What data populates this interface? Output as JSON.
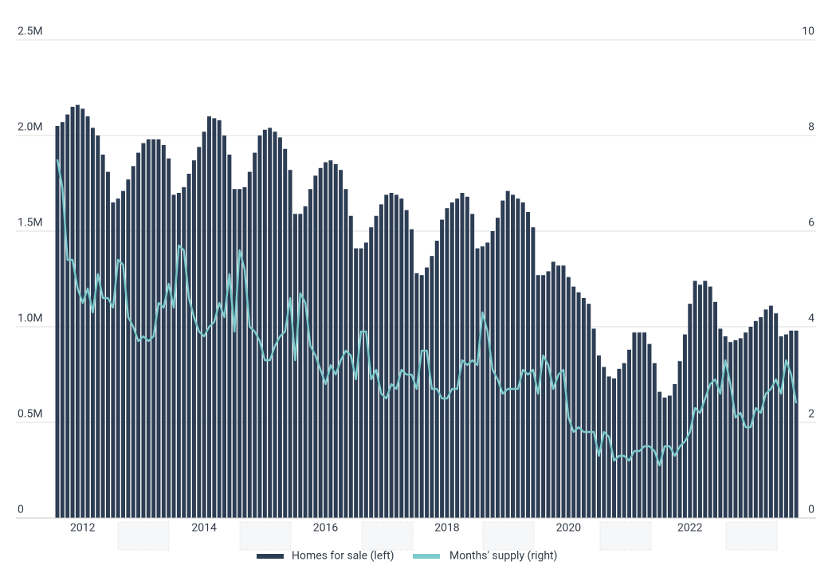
{
  "chart_data": {
    "type": "bar",
    "categories": [
      null,
      null,
      null,
      null,
      null,
      "2012",
      null,
      null,
      null,
      null,
      null,
      null,
      null,
      null,
      null,
      null,
      null,
      null,
      null,
      null,
      null,
      null,
      null,
      null,
      null,
      null,
      null,
      null,
      null,
      "2014",
      null,
      null,
      null,
      null,
      null,
      null,
      null,
      null,
      null,
      null,
      null,
      null,
      null,
      null,
      null,
      null,
      null,
      null,
      null,
      null,
      null,
      null,
      null,
      "2016",
      null,
      null,
      null,
      null,
      null,
      null,
      null,
      null,
      null,
      null,
      null,
      null,
      null,
      null,
      null,
      null,
      null,
      null,
      null,
      null,
      null,
      null,
      null,
      "2018",
      null,
      null,
      null,
      null,
      null,
      null,
      null,
      null,
      null,
      null,
      null,
      null,
      null,
      null,
      null,
      null,
      null,
      null,
      null,
      null,
      null,
      null,
      null,
      "2020",
      null,
      null,
      null,
      null,
      null,
      null,
      null,
      null,
      null,
      null,
      null,
      null,
      null,
      null,
      null,
      null,
      null,
      null,
      null,
      null,
      null,
      null,
      null,
      "2022",
      null,
      null,
      null,
      null,
      null,
      null,
      null,
      null,
      null,
      null,
      null,
      null,
      null,
      null,
      null,
      null,
      null,
      null,
      null,
      null,
      null
    ],
    "series": [
      {
        "name": "Homes for sale (left)",
        "type": "bar",
        "color": "#2c3d54",
        "values": [
          2050000,
          2070000,
          2110000,
          2150000,
          2160000,
          2140000,
          2100000,
          2040000,
          2000000,
          1900000,
          1810000,
          1650000,
          1670000,
          1710000,
          1770000,
          1840000,
          1910000,
          1960000,
          1980000,
          1980000,
          1980000,
          1950000,
          1880000,
          1690000,
          1700000,
          1730000,
          1800000,
          1870000,
          1940000,
          2020000,
          2100000,
          2090000,
          2080000,
          2000000,
          1900000,
          1720000,
          1720000,
          1730000,
          1810000,
          1910000,
          2000000,
          2030000,
          2040000,
          2020000,
          1990000,
          1930000,
          1820000,
          1590000,
          1590000,
          1630000,
          1720000,
          1790000,
          1830000,
          1860000,
          1870000,
          1850000,
          1820000,
          1720000,
          1580000,
          1410000,
          1410000,
          1440000,
          1520000,
          1580000,
          1640000,
          1690000,
          1700000,
          1690000,
          1670000,
          1610000,
          1510000,
          1280000,
          1270000,
          1310000,
          1370000,
          1450000,
          1560000,
          1620000,
          1650000,
          1670000,
          1700000,
          1680000,
          1590000,
          1410000,
          1420000,
          1440000,
          1500000,
          1570000,
          1660000,
          1710000,
          1690000,
          1670000,
          1650000,
          1600000,
          1520000,
          1270000,
          1270000,
          1290000,
          1340000,
          1320000,
          1320000,
          1260000,
          1210000,
          1180000,
          1150000,
          1120000,
          990000,
          850000,
          790000,
          740000,
          730000,
          780000,
          810000,
          880000,
          970000,
          970000,
          970000,
          910000,
          810000,
          660000,
          630000,
          640000,
          700000,
          820000,
          960000,
          1120000,
          1240000,
          1220000,
          1240000,
          1210000,
          1130000,
          990000,
          950000,
          920000,
          930000,
          940000,
          970000,
          1000000,
          1030000,
          1050000,
          1090000,
          1110000,
          1070000,
          950000,
          960000,
          980000,
          980000
        ]
      },
      {
        "name": "Months' supply (right)",
        "type": "line",
        "axis": "y2",
        "color": "#7ccbcc",
        "values": [
          7.5,
          6.9,
          5.4,
          5.4,
          4.8,
          4.5,
          4.8,
          4.3,
          5.1,
          4.6,
          4.6,
          4.4,
          5.4,
          5.3,
          4.2,
          4.0,
          3.7,
          3.8,
          3.7,
          3.8,
          4.5,
          4.4,
          4.9,
          4.4,
          5.7,
          5.6,
          4.6,
          4.2,
          3.9,
          3.8,
          4.0,
          4.1,
          4.5,
          4.2,
          5.1,
          3.9,
          5.6,
          5.2,
          4.0,
          3.9,
          3.7,
          3.3,
          3.3,
          3.6,
          3.8,
          3.9,
          4.6,
          3.3,
          4.7,
          4.5,
          3.6,
          3.4,
          3.1,
          2.8,
          3.2,
          3.0,
          3.3,
          3.5,
          3.4,
          2.9,
          3.9,
          3.9,
          2.9,
          3.1,
          2.6,
          2.5,
          2.8,
          2.7,
          3.1,
          3.0,
          3.0,
          2.7,
          3.5,
          3.5,
          2.7,
          2.7,
          2.5,
          2.5,
          2.7,
          2.7,
          3.3,
          3.2,
          3.3,
          3.2,
          4.3,
          3.9,
          3.1,
          2.9,
          2.6,
          2.7,
          2.7,
          2.7,
          3.1,
          3.0,
          3.1,
          2.6,
          3.4,
          3.2,
          2.7,
          3.0,
          3.1,
          2.1,
          1.8,
          1.9,
          1.8,
          1.8,
          1.8,
          1.3,
          1.8,
          1.7,
          1.2,
          1.3,
          1.3,
          1.2,
          1.4,
          1.4,
          1.5,
          1.5,
          1.4,
          1.1,
          1.5,
          1.5,
          1.3,
          1.5,
          1.6,
          1.8,
          2.3,
          2.2,
          2.5,
          2.8,
          2.9,
          2.6,
          3.3,
          2.8,
          2.1,
          2.2,
          1.9,
          1.9,
          2.3,
          2.2,
          2.6,
          2.7,
          2.9,
          2.6,
          3.3,
          3.0,
          2.4
        ]
      }
    ],
    "ylim": [
      0,
      2500000
    ],
    "yticks": [
      0,
      {
        "value": 500000,
        "label": "0.5M"
      },
      {
        "value": 1000000,
        "label": "1.0M"
      },
      {
        "value": 1500000,
        "label": "1.5M"
      },
      {
        "value": 2000000,
        "label": "2.0M"
      },
      {
        "value": 2500000,
        "label": "2.5M"
      }
    ],
    "y2lim": [
      0,
      10
    ],
    "y2ticks": [
      0,
      2,
      4,
      6,
      8,
      10
    ],
    "grid": true,
    "legend": "bottom"
  }
}
